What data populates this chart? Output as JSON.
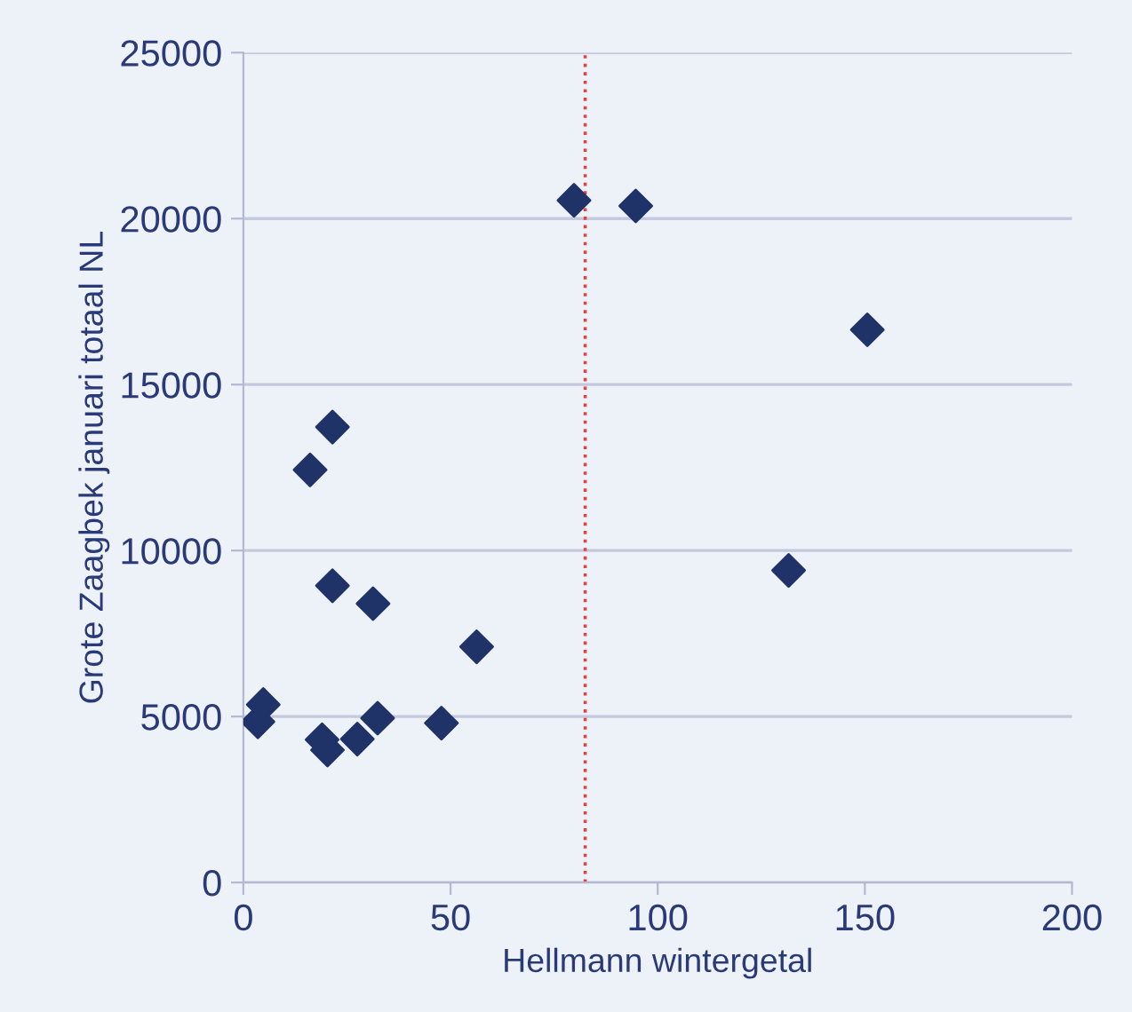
{
  "chart_data": {
    "type": "scatter",
    "xlabel": "Hellmann wintergetal",
    "ylabel": "Grote Zaagbek januari totaal NL",
    "x": [
      3.5,
      4.8,
      16.1,
      21.5,
      21.5,
      31.3,
      56.3,
      19.0,
      20.3,
      27.5,
      32.4,
      47.8,
      79.8,
      94.7,
      150.6,
      131.6
    ],
    "series": [
      {
        "color": "#1f3368",
        "values": [
          4840,
          5360,
          12430,
          13720,
          8940,
          8400,
          7100,
          4300,
          3990,
          4320,
          4950,
          4800,
          20550,
          20380,
          16650,
          9400
        ]
      }
    ],
    "marker": "diamond",
    "xlim": [
      0,
      200
    ],
    "xticks": [
      0,
      50,
      100,
      150,
      200
    ],
    "ylim": [
      0,
      25000
    ],
    "yticks": [
      0,
      5000,
      10000,
      15000,
      20000,
      25000
    ],
    "grid": "y",
    "ref_lines": [
      {
        "axis": "x",
        "value": 82.5,
        "label": null,
        "color": "#e8413a",
        "line_style": "dotted"
      }
    ]
  }
}
